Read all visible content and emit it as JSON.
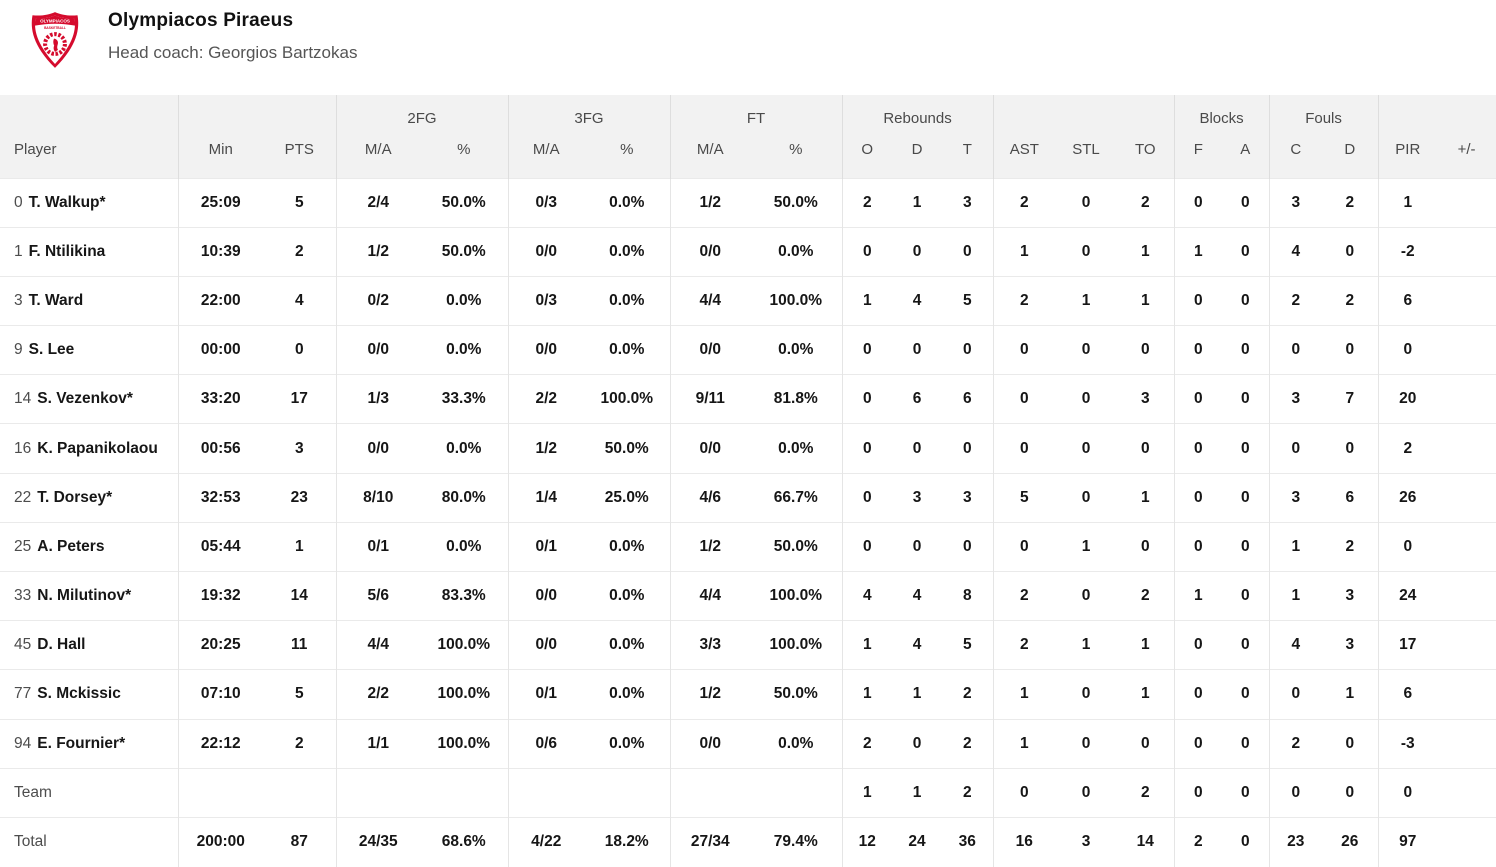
{
  "header": {
    "team_name": "Olympiacos Piraeus",
    "coach": "Head coach: Georgios Bartzokas",
    "logo": {
      "text_top": "OLYMPIACOS",
      "text_bottom": "BASKETBALL"
    }
  },
  "colors": {
    "accent_red": "#d50b2d",
    "header_bg": "#f2f2f2",
    "border": "#e5e5e5",
    "text_primary": "#161616",
    "text_secondary": "#4d4d4d"
  },
  "table": {
    "group_headers": {
      "fg2": "2FG",
      "fg3": "3FG",
      "ft": "FT",
      "rebounds": "Rebounds",
      "blocks": "Blocks",
      "fouls": "Fouls"
    },
    "columns": {
      "player": "Player",
      "min": "Min",
      "pts": "PTS",
      "ma": "M/A",
      "pct": "%",
      "o": "O",
      "d": "D",
      "t": "T",
      "ast": "AST",
      "stl": "STL",
      "to": "TO",
      "bf": "F",
      "ba": "A",
      "fc": "C",
      "fd": "D",
      "pir": "PIR",
      "plus_minus": "+/-"
    },
    "rows": [
      {
        "type": "player",
        "num": "0",
        "name": "T. Walkup*",
        "cells": [
          "25:09",
          "5",
          "2/4",
          "50.0%",
          "0/3",
          "0.0%",
          "1/2",
          "50.0%",
          "2",
          "1",
          "3",
          "2",
          "0",
          "2",
          "0",
          "0",
          "3",
          "2",
          "1",
          ""
        ]
      },
      {
        "type": "player",
        "num": "1",
        "name": "F. Ntilikina",
        "cells": [
          "10:39",
          "2",
          "1/2",
          "50.0%",
          "0/0",
          "0.0%",
          "0/0",
          "0.0%",
          "0",
          "0",
          "0",
          "1",
          "0",
          "1",
          "1",
          "0",
          "4",
          "0",
          "-2",
          ""
        ]
      },
      {
        "type": "player",
        "num": "3",
        "name": "T. Ward",
        "cells": [
          "22:00",
          "4",
          "0/2",
          "0.0%",
          "0/3",
          "0.0%",
          "4/4",
          "100.0%",
          "1",
          "4",
          "5",
          "2",
          "1",
          "1",
          "0",
          "0",
          "2",
          "2",
          "6",
          ""
        ]
      },
      {
        "type": "player",
        "num": "9",
        "name": "S. Lee",
        "cells": [
          "00:00",
          "0",
          "0/0",
          "0.0%",
          "0/0",
          "0.0%",
          "0/0",
          "0.0%",
          "0",
          "0",
          "0",
          "0",
          "0",
          "0",
          "0",
          "0",
          "0",
          "0",
          "0",
          ""
        ]
      },
      {
        "type": "player",
        "num": "14",
        "name": "S. Vezenkov*",
        "cells": [
          "33:20",
          "17",
          "1/3",
          "33.3%",
          "2/2",
          "100.0%",
          "9/11",
          "81.8%",
          "0",
          "6",
          "6",
          "0",
          "0",
          "3",
          "0",
          "0",
          "3",
          "7",
          "20",
          ""
        ]
      },
      {
        "type": "player",
        "num": "16",
        "name": "K. Papanikolaou",
        "cells": [
          "00:56",
          "3",
          "0/0",
          "0.0%",
          "1/2",
          "50.0%",
          "0/0",
          "0.0%",
          "0",
          "0",
          "0",
          "0",
          "0",
          "0",
          "0",
          "0",
          "0",
          "0",
          "2",
          ""
        ]
      },
      {
        "type": "player",
        "num": "22",
        "name": "T. Dorsey*",
        "cells": [
          "32:53",
          "23",
          "8/10",
          "80.0%",
          "1/4",
          "25.0%",
          "4/6",
          "66.7%",
          "0",
          "3",
          "3",
          "5",
          "0",
          "1",
          "0",
          "0",
          "3",
          "6",
          "26",
          ""
        ]
      },
      {
        "type": "player",
        "num": "25",
        "name": "A. Peters",
        "cells": [
          "05:44",
          "1",
          "0/1",
          "0.0%",
          "0/1",
          "0.0%",
          "1/2",
          "50.0%",
          "0",
          "0",
          "0",
          "0",
          "1",
          "0",
          "0",
          "0",
          "1",
          "2",
          "0",
          ""
        ]
      },
      {
        "type": "player",
        "num": "33",
        "name": "N. Milutinov*",
        "cells": [
          "19:32",
          "14",
          "5/6",
          "83.3%",
          "0/0",
          "0.0%",
          "4/4",
          "100.0%",
          "4",
          "4",
          "8",
          "2",
          "0",
          "2",
          "1",
          "0",
          "1",
          "3",
          "24",
          ""
        ]
      },
      {
        "type": "player",
        "num": "45",
        "name": "D. Hall",
        "cells": [
          "20:25",
          "11",
          "4/4",
          "100.0%",
          "0/0",
          "0.0%",
          "3/3",
          "100.0%",
          "1",
          "4",
          "5",
          "2",
          "1",
          "1",
          "0",
          "0",
          "4",
          "3",
          "17",
          ""
        ]
      },
      {
        "type": "player",
        "num": "77",
        "name": "S. Mckissic",
        "cells": [
          "07:10",
          "5",
          "2/2",
          "100.0%",
          "0/1",
          "0.0%",
          "1/2",
          "50.0%",
          "1",
          "1",
          "2",
          "1",
          "0",
          "1",
          "0",
          "0",
          "0",
          "1",
          "6",
          ""
        ]
      },
      {
        "type": "player",
        "num": "94",
        "name": "E. Fournier*",
        "cells": [
          "22:12",
          "2",
          "1/1",
          "100.0%",
          "0/6",
          "0.0%",
          "0/0",
          "0.0%",
          "2",
          "0",
          "2",
          "1",
          "0",
          "0",
          "0",
          "0",
          "2",
          "0",
          "-3",
          ""
        ]
      },
      {
        "type": "team",
        "num": "",
        "name": "Team",
        "cells": [
          "",
          "",
          "",
          "",
          "",
          "",
          "",
          "",
          "1",
          "1",
          "2",
          "0",
          "0",
          "2",
          "0",
          "0",
          "0",
          "0",
          "0",
          ""
        ]
      },
      {
        "type": "total",
        "num": "",
        "name": "Total",
        "cells": [
          "200:00",
          "87",
          "24/35",
          "68.6%",
          "4/22",
          "18.2%",
          "27/34",
          "79.4%",
          "12",
          "24",
          "36",
          "16",
          "3",
          "14",
          "2",
          "0",
          "23",
          "26",
          "97",
          ""
        ]
      }
    ]
  }
}
